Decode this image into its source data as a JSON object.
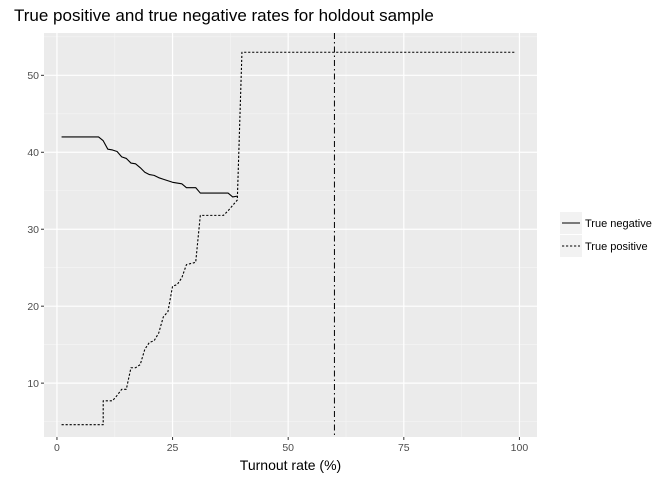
{
  "chart_data": {
    "type": "line",
    "title": "True positive and true negative rates for holdout sample",
    "xlabel": "Turnout rate (%)",
    "ylabel": "",
    "xlim": [
      -2.8,
      103.8
    ],
    "ylim": [
      3,
      55.5
    ],
    "xticks": [
      0,
      25,
      50,
      75,
      100
    ],
    "yticks": [
      10,
      20,
      30,
      40,
      50
    ],
    "grid": true,
    "legend_position": "right",
    "vline": {
      "x": 60,
      "style": "dashdot"
    },
    "series": [
      {
        "name": "True negative",
        "style": "solid",
        "points": [
          [
            1,
            42
          ],
          [
            9,
            42
          ],
          [
            10,
            41.5
          ],
          [
            11,
            40.4
          ],
          [
            12,
            40.3
          ],
          [
            13,
            40.1
          ],
          [
            14,
            39.4
          ],
          [
            15,
            39.2
          ],
          [
            16,
            38.6
          ],
          [
            17,
            38.5
          ],
          [
            18,
            38
          ],
          [
            19,
            37.4
          ],
          [
            20,
            37.1
          ],
          [
            21,
            37
          ],
          [
            22,
            36.7
          ],
          [
            23,
            36.5
          ],
          [
            24,
            36.3
          ],
          [
            25,
            36.1
          ],
          [
            26,
            36
          ],
          [
            27,
            35.9
          ],
          [
            28,
            35.4
          ],
          [
            29,
            35.4
          ],
          [
            30,
            35.4
          ],
          [
            31,
            34.7
          ],
          [
            37,
            34.7
          ],
          [
            38,
            34.2
          ],
          [
            39,
            34.3
          ]
        ]
      },
      {
        "name": "True positive",
        "style": "dotted",
        "points": [
          [
            1,
            4.6
          ],
          [
            10,
            4.6
          ],
          [
            10,
            7.7
          ],
          [
            12,
            7.7
          ],
          [
            13,
            8.4
          ],
          [
            14,
            9.2
          ],
          [
            15,
            9.2
          ],
          [
            16,
            12
          ],
          [
            17,
            12
          ],
          [
            18,
            12.4
          ],
          [
            19,
            14.4
          ],
          [
            20,
            15.3
          ],
          [
            21,
            15.5
          ],
          [
            22,
            16.5
          ],
          [
            23,
            18.6
          ],
          [
            24,
            19.3
          ],
          [
            25,
            22.6
          ],
          [
            26,
            22.8
          ],
          [
            27,
            23.7
          ],
          [
            28,
            25.4
          ],
          [
            30,
            25.7
          ],
          [
            31,
            31.8
          ],
          [
            36,
            31.8
          ],
          [
            37,
            32.4
          ],
          [
            38,
            33.1
          ],
          [
            39,
            33.8
          ],
          [
            40,
            53
          ],
          [
            99,
            53
          ]
        ]
      }
    ]
  }
}
